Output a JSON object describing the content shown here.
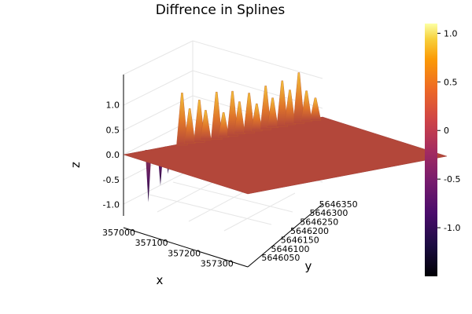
{
  "chart_data": {
    "type": "surface",
    "title": "Diffrence in Splines",
    "xlabel": "x",
    "ylabel": "y",
    "zlabel": "z",
    "xlim": [
      357000,
      357380
    ],
    "ylim": [
      5646020,
      5646380
    ],
    "zlim": [
      -1.3,
      1.15
    ],
    "x_ticks": [
      "357000",
      "357100",
      "357200",
      "357300"
    ],
    "y_ticks": [
      "5646050",
      "5646100",
      "5646150",
      "5646200",
      "5646250",
      "5646300",
      "5646350"
    ],
    "z_ticks": [
      "-1.0",
      "-0.5",
      "0.0",
      "0.5",
      "1.0"
    ],
    "colorbar": {
      "ticks": [
        "-1.0",
        "-0.5",
        "0",
        "0.5",
        "1.0"
      ],
      "range": [
        -1.5,
        1.1
      ],
      "colormap": "inferno"
    },
    "features": {
      "baseline_z": 0.0,
      "peak_z": 1.05,
      "trough_z": -1.05,
      "peak_region": "along x = 357000 edge, rising toward high y",
      "trough_region": "near x = 357000, y = 5646050"
    },
    "colors": {
      "surface_main": "#b3473a",
      "peak": "#f5c438",
      "trough": "#2a0a4f"
    }
  }
}
